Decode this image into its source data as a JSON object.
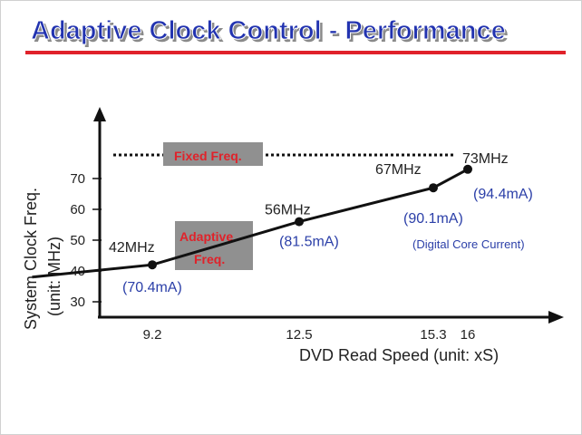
{
  "title": "Adaptive Clock Control - Performance",
  "colors": {
    "title_fill": "#2233b0",
    "title_shadow": "#8a8a8a",
    "underline": "#e0222a",
    "line": "#111111",
    "current_label": "#2b3fa8",
    "legend_bg": "#909090",
    "legend_text": "#e0222a"
  },
  "legend": {
    "fixed": "Fixed Freq.",
    "adaptive_line1": "Adaptive",
    "adaptive_line2": "Freq."
  },
  "note": "(Digital Core Current)",
  "chart_data": {
    "type": "line",
    "xlabel": "DVD Read Speed (unit: xS)",
    "ylabel_line1": "System Clock Freq.",
    "ylabel_line2": "(unit: MHz)",
    "x_ticks": [
      "9.2",
      "12.5",
      "15.3",
      "16"
    ],
    "y_ticks": [
      "30",
      "40",
      "50",
      "60",
      "70"
    ],
    "y_tick_values": [
      30,
      40,
      50,
      60,
      70
    ],
    "x_tick_values": [
      9.2,
      12.5,
      15.3,
      16
    ],
    "series": [
      {
        "type": "adaptive",
        "x": [
          9.2,
          12.5,
          15.3,
          16
        ],
        "y": [
          42,
          56,
          67,
          73
        ],
        "freq_labels": [
          "42MHz",
          "56MHz",
          "67MHz",
          "73MHz"
        ],
        "current_labels": [
          "(70.4mA)",
          "(81.5mA)",
          "(90.1mA)",
          "(94.4mA)"
        ]
      }
    ],
    "fixed_level": 80,
    "line_start": [
      6.5,
      38
    ],
    "grid": false,
    "dotted_reference_line": true
  }
}
